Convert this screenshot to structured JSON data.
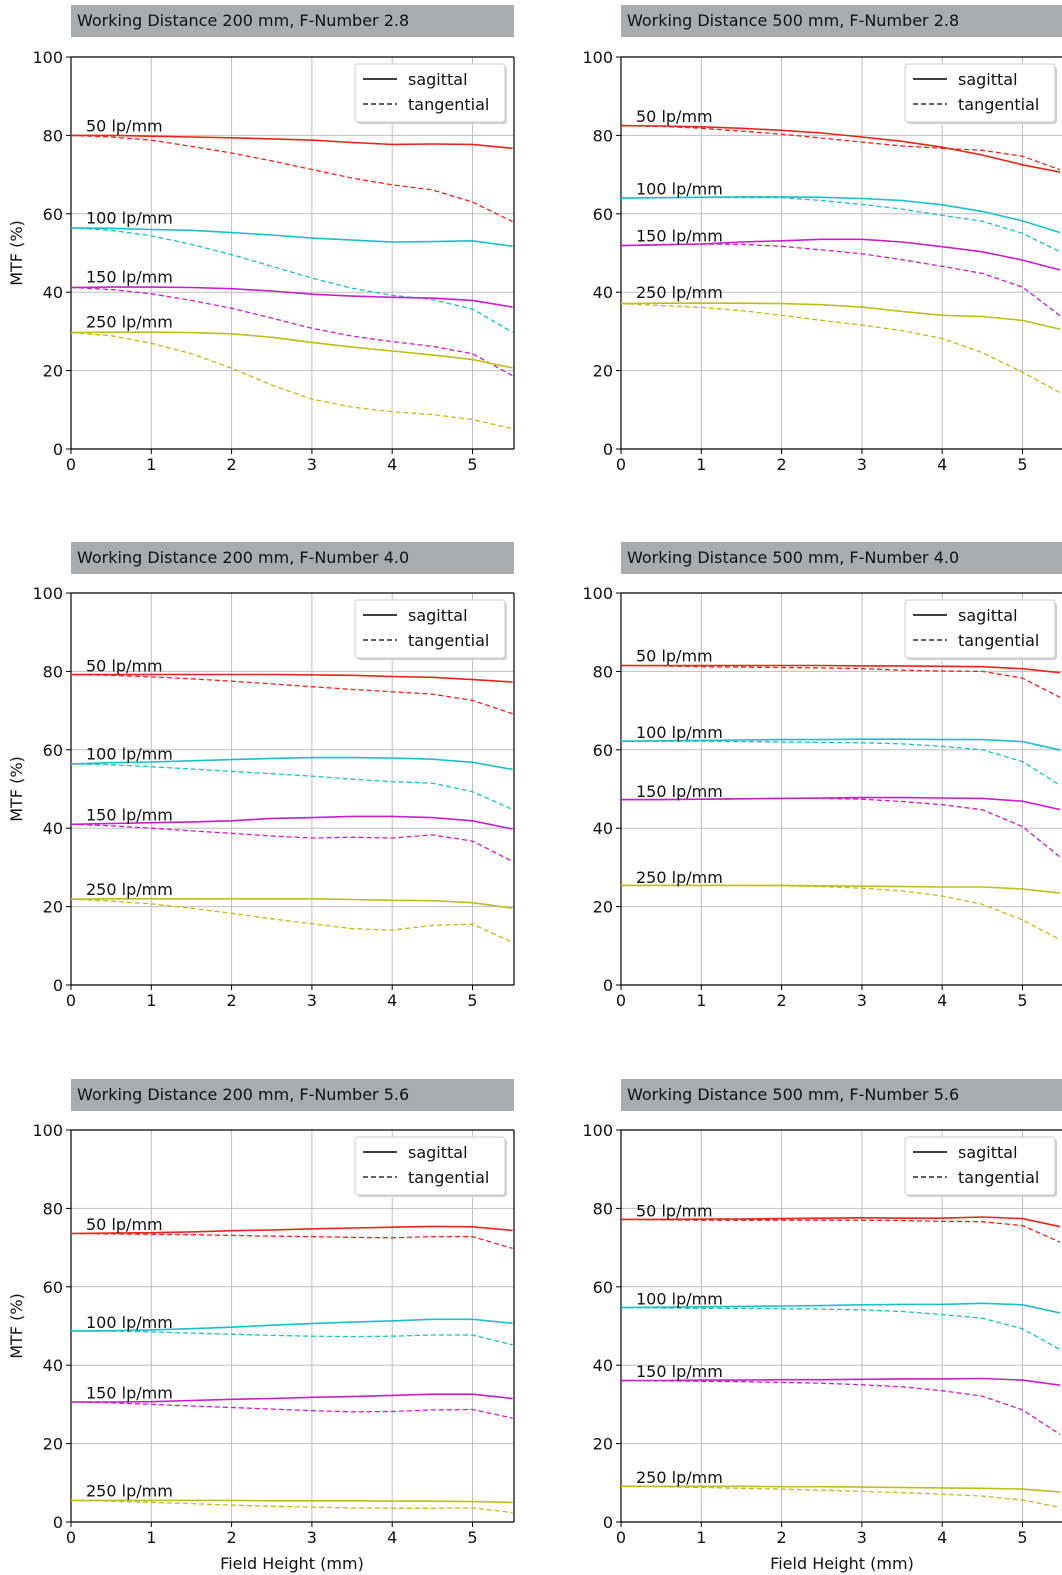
{
  "figure": {
    "ylabel": "MTF (%)",
    "xlabel": "Field Height (mm)",
    "legend": {
      "sagittal": "sagittal",
      "tangential": "tangential"
    },
    "colors": {
      "50 lp/mm": "#e8251a",
      "100 lp/mm": "#1cbfc6",
      "150 lp/mm": "#c81fc8",
      "250 lp/mm": "#bdbd1c",
      "title_bar": "#a9abad"
    }
  },
  "chart_data": [
    {
      "type": "line",
      "title": "Working Distance 200 mm, F-Number 2.8",
      "xlim": [
        0,
        5.5
      ],
      "ylim": [
        0,
        100
      ],
      "xticks": [
        0,
        1,
        2,
        3,
        4,
        5
      ],
      "yticks": [
        0,
        20,
        40,
        60,
        80,
        100
      ],
      "grid": true,
      "legend_position": "top-right",
      "x": [
        0,
        0.5,
        1,
        1.5,
        2,
        2.5,
        3,
        3.5,
        4,
        4.5,
        5,
        5.5
      ],
      "series": [
        {
          "name": "50 lp/mm",
          "label_y": 82.5,
          "sagittal": [
            80,
            80,
            79.8,
            79.6,
            79.4,
            79.1,
            78.8,
            78.2,
            77.7,
            77.8,
            77.7,
            76.7
          ],
          "tangential": [
            80,
            79.6,
            78.8,
            77.2,
            75.5,
            73.5,
            71.3,
            69.1,
            67.4,
            66.1,
            63,
            58
          ]
        },
        {
          "name": "100 lp/mm",
          "label_y": 59,
          "sagittal": [
            56.4,
            56.3,
            56,
            55.8,
            55.2,
            54.6,
            53.8,
            53.3,
            52.8,
            52.9,
            53.1,
            51.7
          ],
          "tangential": [
            56.4,
            55.8,
            54.4,
            52.2,
            49.6,
            46.6,
            43.6,
            41,
            39.2,
            38.1,
            35.7,
            29.8
          ]
        },
        {
          "name": "150 lp/mm",
          "label_y": 44,
          "sagittal": [
            41.2,
            41.3,
            41.3,
            41.2,
            40.9,
            40.3,
            39.5,
            39,
            38.7,
            38.5,
            37.9,
            36.2
          ],
          "tangential": [
            41.2,
            40.7,
            39.6,
            37.9,
            35.9,
            33.4,
            30.8,
            28.8,
            27.4,
            26.2,
            24.3,
            18.7
          ]
        },
        {
          "name": "250 lp/mm",
          "label_y": 32.5,
          "sagittal": [
            29.7,
            29.8,
            29.8,
            29.7,
            29.4,
            28.5,
            27.2,
            26,
            25,
            24,
            22.8,
            20.7
          ],
          "tangential": [
            29.7,
            28.9,
            27,
            24.3,
            20.6,
            16.3,
            12.7,
            10.7,
            9.5,
            8.8,
            7.5,
            5.2
          ]
        }
      ]
    },
    {
      "type": "line",
      "title": "Working Distance 500 mm, F-Number 2.8",
      "xlim": [
        0,
        5.5
      ],
      "ylim": [
        0,
        100
      ],
      "xticks": [
        0,
        1,
        2,
        3,
        4,
        5
      ],
      "yticks": [
        0,
        20,
        40,
        60,
        80,
        100
      ],
      "grid": true,
      "legend_position": "top-right",
      "x": [
        0,
        0.5,
        1,
        1.5,
        2,
        2.5,
        3,
        3.5,
        4,
        4.5,
        5,
        5.5
      ],
      "series": [
        {
          "name": "50 lp/mm",
          "label_y": 85,
          "sagittal": [
            82.5,
            82.4,
            82.2,
            81.8,
            81.3,
            80.6,
            79.6,
            78.5,
            77,
            75,
            72.5,
            70.5
          ],
          "tangential": [
            82.5,
            82.3,
            81.8,
            81.1,
            80.3,
            79.3,
            78.3,
            77.3,
            76.7,
            76.2,
            74.7,
            71
          ]
        },
        {
          "name": "100 lp/mm",
          "label_y": 66.5,
          "sagittal": [
            64,
            64.1,
            64.2,
            64.3,
            64.3,
            64.2,
            63.9,
            63.4,
            62.3,
            60.6,
            58.2,
            55
          ],
          "tangential": [
            64,
            64.1,
            64.2,
            64.1,
            64.1,
            63.4,
            62.4,
            61.2,
            59.6,
            58.1,
            55,
            50
          ]
        },
        {
          "name": "150 lp/mm",
          "label_y": 54.5,
          "sagittal": [
            51.9,
            52.1,
            52.3,
            52.8,
            53.1,
            53.5,
            53.5,
            52.8,
            51.6,
            50.3,
            48.2,
            45.5
          ],
          "tangential": [
            51.9,
            52.2,
            52.3,
            52.2,
            51.7,
            50.8,
            49.8,
            48.3,
            46.6,
            44.8,
            41.3,
            33.5
          ]
        },
        {
          "name": "250 lp/mm",
          "label_y": 40,
          "sagittal": [
            37.1,
            37.2,
            37.2,
            37.2,
            37.1,
            36.8,
            36.2,
            35.1,
            34.1,
            33.8,
            32.8,
            30.4
          ],
          "tangential": [
            37.1,
            36.6,
            36.1,
            35.3,
            34.1,
            32.8,
            31.6,
            30.2,
            28.2,
            24.6,
            19.6,
            14
          ]
        }
      ]
    },
    {
      "type": "line",
      "title": "Working Distance 200 mm, F-Number 4.0",
      "xlim": [
        0,
        5.5
      ],
      "ylim": [
        0,
        100
      ],
      "xticks": [
        0,
        1,
        2,
        3,
        4,
        5
      ],
      "yticks": [
        0,
        20,
        40,
        60,
        80,
        100
      ],
      "grid": true,
      "legend_position": "top-right",
      "x": [
        0,
        0.5,
        1,
        1.5,
        2,
        2.5,
        3,
        3.5,
        4,
        4.5,
        5,
        5.5
      ],
      "series": [
        {
          "name": "50 lp/mm",
          "label_y": 81.5,
          "sagittal": [
            79.2,
            79.2,
            79.2,
            79.2,
            79.2,
            79.2,
            79.1,
            79,
            78.7,
            78.5,
            77.9,
            77.3
          ],
          "tangential": [
            79.2,
            79,
            78.6,
            78.1,
            77.5,
            76.8,
            76.1,
            75.4,
            74.8,
            74.2,
            72.6,
            69.2
          ]
        },
        {
          "name": "100 lp/mm",
          "label_y": 59,
          "sagittal": [
            56.4,
            56.7,
            56.9,
            57.2,
            57.5,
            57.8,
            58,
            58,
            57.9,
            57.6,
            56.8,
            55
          ],
          "tangential": [
            56.4,
            56.2,
            55.7,
            55.1,
            54.5,
            53.9,
            53.3,
            52.5,
            51.9,
            51.5,
            49.3,
            44.8
          ]
        },
        {
          "name": "150 lp/mm",
          "label_y": 43.5,
          "sagittal": [
            41,
            41.2,
            41.4,
            41.6,
            41.9,
            42.5,
            42.7,
            43,
            43,
            42.7,
            41.9,
            39.8
          ],
          "tangential": [
            41,
            40.6,
            40,
            39.3,
            38.7,
            38,
            37.5,
            37.7,
            37.5,
            38.3,
            36.7,
            31.5
          ]
        },
        {
          "name": "250 lp/mm",
          "label_y": 24.5,
          "sagittal": [
            21.9,
            22,
            22,
            22,
            22,
            22,
            22,
            21.8,
            21.6,
            21.5,
            21,
            19.6
          ],
          "tangential": [
            21.9,
            21.4,
            20.7,
            19.6,
            18.3,
            16.9,
            15.6,
            14.4,
            14,
            15.2,
            15.5,
            10.9
          ]
        }
      ]
    },
    {
      "type": "line",
      "title": "Working Distance 500 mm, F-Number 4.0",
      "xlim": [
        0,
        5.5
      ],
      "ylim": [
        0,
        100
      ],
      "xticks": [
        0,
        1,
        2,
        3,
        4,
        5
      ],
      "yticks": [
        0,
        20,
        40,
        60,
        80,
        100
      ],
      "grid": true,
      "legend_position": "top-right",
      "x": [
        0,
        0.5,
        1,
        1.5,
        2,
        2.5,
        3,
        3.5,
        4,
        4.5,
        5,
        5.5
      ],
      "series": [
        {
          "name": "50 lp/mm",
          "label_y": 84,
          "sagittal": [
            81.5,
            81.5,
            81.5,
            81.5,
            81.5,
            81.5,
            81.4,
            81.4,
            81.3,
            81.2,
            80.7,
            79.6
          ],
          "tangential": [
            81.5,
            81.4,
            81.2,
            81.1,
            81,
            80.9,
            80.7,
            80.3,
            80.1,
            80,
            78.3,
            73
          ]
        },
        {
          "name": "100 lp/mm",
          "label_y": 64.5,
          "sagittal": [
            62.2,
            62.3,
            62.4,
            62.5,
            62.6,
            62.6,
            62.7,
            62.7,
            62.6,
            62.6,
            62.1,
            59.8
          ],
          "tangential": [
            62.2,
            62.2,
            62.2,
            62.1,
            62,
            61.9,
            61.8,
            61.5,
            60.9,
            60,
            57,
            50.5
          ]
        },
        {
          "name": "150 lp/mm",
          "label_y": 49.5,
          "sagittal": [
            47.3,
            47.3,
            47.4,
            47.5,
            47.6,
            47.7,
            47.8,
            47.8,
            47.7,
            47.6,
            46.9,
            44.6
          ],
          "tangential": [
            47.3,
            47.3,
            47.4,
            47.5,
            47.6,
            47.6,
            47.4,
            46.8,
            46,
            44.7,
            40.4,
            32.1
          ]
        },
        {
          "name": "250 lp/mm",
          "label_y": 27.5,
          "sagittal": [
            25.4,
            25.4,
            25.4,
            25.4,
            25.4,
            25.3,
            25.2,
            25.1,
            25,
            25,
            24.5,
            23.4
          ],
          "tangential": [
            25.4,
            25.4,
            25.4,
            25.4,
            25.3,
            25.1,
            24.7,
            24,
            22.7,
            20.6,
            16.6,
            11.2
          ]
        }
      ]
    },
    {
      "type": "line",
      "title": "Working Distance 200 mm, F-Number 5.6",
      "xlim": [
        0,
        5.5
      ],
      "ylim": [
        0,
        100
      ],
      "xticks": [
        0,
        1,
        2,
        3,
        4,
        5
      ],
      "yticks": [
        0,
        20,
        40,
        60,
        80,
        100
      ],
      "grid": true,
      "legend_position": "top-right",
      "x": [
        0,
        0.5,
        1,
        1.5,
        2,
        2.5,
        3,
        3.5,
        4,
        4.5,
        5,
        5.5
      ],
      "series": [
        {
          "name": "50 lp/mm",
          "label_y": 76,
          "sagittal": [
            73.6,
            73.7,
            73.8,
            74,
            74.3,
            74.5,
            74.8,
            75,
            75.2,
            75.4,
            75.3,
            74.4
          ],
          "tangential": [
            73.6,
            73.5,
            73.4,
            73.3,
            73.1,
            72.9,
            72.8,
            72.6,
            72.5,
            72.8,
            72.8,
            69.8
          ]
        },
        {
          "name": "100 lp/mm",
          "label_y": 51,
          "sagittal": [
            48.7,
            48.8,
            49,
            49.3,
            49.7,
            50.2,
            50.6,
            51,
            51.3,
            51.7,
            51.7,
            50.7
          ],
          "tangential": [
            48.7,
            48.7,
            48.5,
            48.2,
            47.9,
            47.6,
            47.4,
            47.3,
            47.4,
            47.7,
            47.7,
            45.2
          ]
        },
        {
          "name": "150 lp/mm",
          "label_y": 33,
          "sagittal": [
            30.6,
            30.6,
            30.7,
            31,
            31.3,
            31.5,
            31.8,
            32,
            32.3,
            32.6,
            32.6,
            31.5
          ],
          "tangential": [
            30.6,
            30.4,
            30,
            29.6,
            29.2,
            28.8,
            28.4,
            28.1,
            28.2,
            28.6,
            28.7,
            26.5
          ]
        },
        {
          "name": "250 lp/mm",
          "label_y": 8,
          "sagittal": [
            5.5,
            5.5,
            5.5,
            5.5,
            5.5,
            5.4,
            5.4,
            5.4,
            5.3,
            5.3,
            5.2,
            5
          ],
          "tangential": [
            5.5,
            5.3,
            5,
            4.7,
            4.3,
            4,
            3.8,
            3.6,
            3.5,
            3.5,
            3.6,
            2.4
          ]
        }
      ]
    },
    {
      "type": "line",
      "title": "Working Distance 500 mm, F-Number 5.6",
      "xlim": [
        0,
        5.5
      ],
      "ylim": [
        0,
        100
      ],
      "xticks": [
        0,
        1,
        2,
        3,
        4,
        5
      ],
      "yticks": [
        0,
        20,
        40,
        60,
        80,
        100
      ],
      "grid": true,
      "legend_position": "top-right",
      "x": [
        0,
        0.5,
        1,
        1.5,
        2,
        2.5,
        3,
        3.5,
        4,
        4.5,
        5,
        5.5
      ],
      "series": [
        {
          "name": "50 lp/mm",
          "label_y": 79.5,
          "sagittal": [
            77.2,
            77.2,
            77.3,
            77.3,
            77.4,
            77.5,
            77.6,
            77.5,
            77.5,
            77.8,
            77.4,
            75.2
          ],
          "tangential": [
            77.2,
            77.1,
            77,
            77,
            77,
            77,
            77,
            76.9,
            76.7,
            76.6,
            75.6,
            71.1
          ]
        },
        {
          "name": "100 lp/mm",
          "label_y": 57,
          "sagittal": [
            54.7,
            54.8,
            54.9,
            55,
            55.1,
            55.2,
            55.4,
            55.5,
            55.5,
            55.8,
            55.4,
            53.2
          ],
          "tangential": [
            54.7,
            54.6,
            54.5,
            54.5,
            54.4,
            54.3,
            54.1,
            53.7,
            52.9,
            52,
            49.3,
            43.6
          ]
        },
        {
          "name": "150 lp/mm",
          "label_y": 38.5,
          "sagittal": [
            36.1,
            36.1,
            36.2,
            36.2,
            36.3,
            36.3,
            36.4,
            36.5,
            36.5,
            36.6,
            36.2,
            34.8
          ],
          "tangential": [
            36.1,
            36,
            35.9,
            35.8,
            35.6,
            35.4,
            35,
            34.5,
            33.5,
            32.1,
            28.6,
            21.9
          ]
        },
        {
          "name": "250 lp/mm",
          "label_y": 11.5,
          "sagittal": [
            9.1,
            9.1,
            9.1,
            9.1,
            9,
            9,
            8.9,
            8.8,
            8.7,
            8.6,
            8.4,
            7.6
          ],
          "tangential": [
            9.1,
            9,
            8.8,
            8.6,
            8.4,
            8.1,
            7.8,
            7.5,
            7.1,
            6.6,
            5.6,
            3.6
          ]
        }
      ]
    }
  ]
}
